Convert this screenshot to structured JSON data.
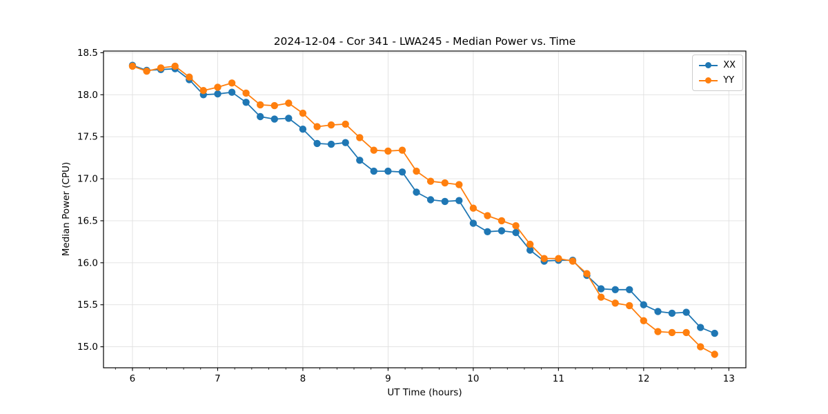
{
  "chart_data": {
    "type": "line",
    "title": "2024-12-04 - Cor 341 - LWA245 - Median Power vs. Time",
    "xlabel": "UT Time (hours)",
    "ylabel": "Median Power (CPU)",
    "xlim": [
      5.66,
      13.2
    ],
    "ylim": [
      14.75,
      18.52
    ],
    "xticks": [
      6,
      7,
      8,
      9,
      10,
      11,
      12,
      13
    ],
    "yticks": [
      15.0,
      15.5,
      16.0,
      16.5,
      17.0,
      17.5,
      18.0,
      18.5
    ],
    "x_minor_step": 0.2,
    "grid": true,
    "legend_position": "upper right",
    "x": [
      6.0,
      6.167,
      6.333,
      6.5,
      6.667,
      6.833,
      7.0,
      7.167,
      7.333,
      7.5,
      7.667,
      7.833,
      8.0,
      8.167,
      8.333,
      8.5,
      8.667,
      8.833,
      9.0,
      9.167,
      9.333,
      9.5,
      9.667,
      9.833,
      10.0,
      10.167,
      10.333,
      10.5,
      10.667,
      10.833,
      11.0,
      11.167,
      11.333,
      11.5,
      11.667,
      11.833,
      12.0,
      12.167,
      12.333,
      12.5,
      12.667,
      12.833
    ],
    "series": [
      {
        "name": "XX",
        "color": "#1f77b4",
        "values": [
          18.35,
          18.29,
          18.3,
          18.31,
          18.18,
          18.0,
          18.01,
          18.03,
          17.91,
          17.74,
          17.71,
          17.72,
          17.59,
          17.42,
          17.41,
          17.43,
          17.22,
          17.09,
          17.09,
          17.08,
          16.84,
          16.75,
          16.73,
          16.74,
          16.47,
          16.37,
          16.38,
          16.36,
          16.15,
          16.02,
          16.03,
          16.03,
          15.85,
          15.69,
          15.68,
          15.68,
          15.5,
          15.42,
          15.4,
          15.41,
          15.23,
          15.16
        ]
      },
      {
        "name": "YY",
        "color": "#ff7f0e",
        "values": [
          18.34,
          18.28,
          18.32,
          18.34,
          18.21,
          18.05,
          18.09,
          18.14,
          18.02,
          17.88,
          17.87,
          17.9,
          17.78,
          17.62,
          17.64,
          17.65,
          17.49,
          17.34,
          17.33,
          17.34,
          17.09,
          16.97,
          16.95,
          16.93,
          16.65,
          16.56,
          16.5,
          16.44,
          16.22,
          16.05,
          16.05,
          16.02,
          15.87,
          15.59,
          15.52,
          15.49,
          15.31,
          15.18,
          15.17,
          15.17,
          15.0,
          14.91
        ]
      }
    ],
    "style": {
      "grid_color": "#e0e0e0",
      "spine_color": "#000000",
      "marker_radius": 5.2,
      "line_width": 1.8
    }
  }
}
